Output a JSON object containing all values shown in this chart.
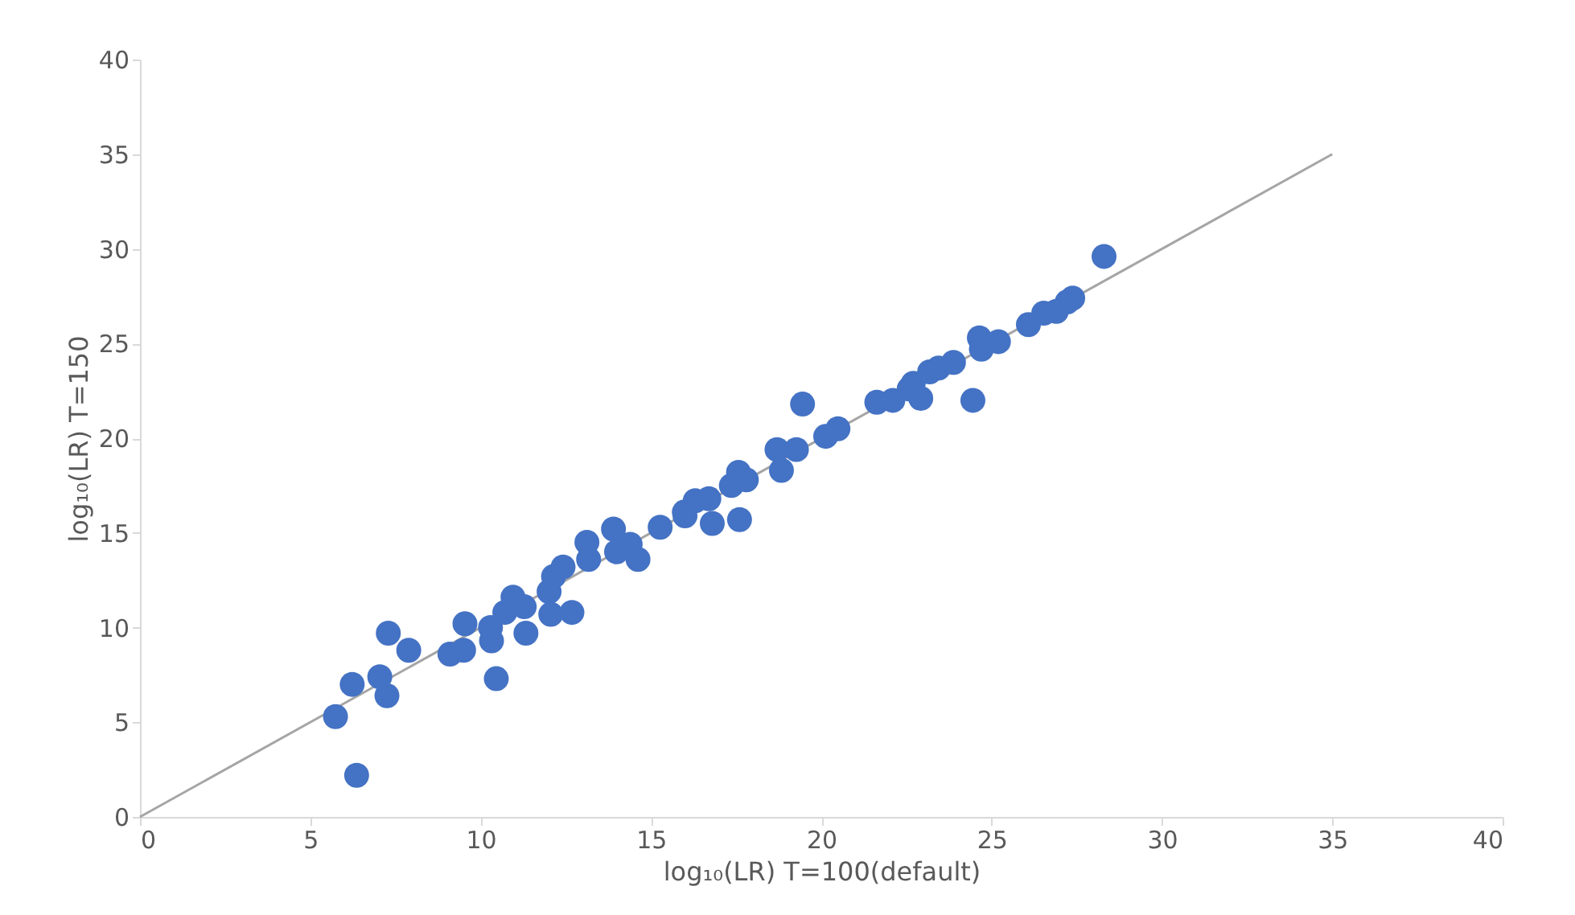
{
  "chart_data": {
    "type": "scatter",
    "xlabel": "log₁₀(LR) T=100(default)",
    "ylabel": "log₁₀(LR) T=150",
    "xlim": [
      0,
      40
    ],
    "xticks": [
      0,
      5,
      10,
      15,
      20,
      25,
      30,
      35,
      40
    ],
    "ylim": [
      0,
      40
    ],
    "yticks": [
      0,
      5,
      10,
      15,
      20,
      25,
      30,
      35,
      40
    ],
    "grid": false,
    "series": [
      {
        "color": "#4472c4",
        "marker": "circle",
        "x": [
          5.74,
          6.36,
          6.23,
          7.04,
          7.25,
          7.29,
          7.89,
          9.1,
          9.5,
          9.54,
          10.29,
          10.32,
          10.46,
          10.71,
          10.95,
          11.28,
          11.33,
          12.01,
          12.06,
          12.68,
          12.14,
          12.42,
          13.12,
          13.17,
          13.9,
          13.99,
          14.39,
          14.62,
          15.27,
          15.98,
          16.3,
          16.0,
          16.7,
          16.8,
          17.36,
          17.57,
          17.8,
          17.6,
          18.7,
          18.83,
          19.27,
          19.45,
          20.13,
          20.49,
          21.63,
          22.1,
          22.58,
          22.92,
          22.7,
          23.18,
          23.44,
          23.88,
          24.45,
          24.64,
          24.7,
          25.2,
          26.08,
          26.53,
          26.9,
          27.22,
          27.38,
          28.3
        ],
        "values": [
          5.3,
          2.2,
          7.0,
          7.4,
          6.4,
          9.7,
          8.8,
          8.6,
          8.8,
          10.2,
          10.0,
          9.3,
          7.3,
          10.8,
          11.6,
          11.1,
          9.7,
          11.9,
          10.7,
          10.8,
          12.7,
          13.2,
          14.5,
          13.6,
          15.2,
          14.0,
          14.4,
          13.6,
          15.3,
          16.1,
          16.7,
          15.9,
          16.8,
          15.5,
          17.5,
          18.2,
          17.8,
          15.7,
          19.4,
          18.3,
          19.4,
          21.8,
          20.1,
          20.5,
          21.9,
          22.0,
          22.6,
          22.1,
          22.9,
          23.5,
          23.7,
          24.0,
          22.0,
          25.3,
          24.7,
          25.1,
          26.0,
          26.6,
          26.7,
          27.2,
          27.4,
          29.6
        ]
      },
      {
        "type": "line",
        "color": "#a5a5a5",
        "line_style": "solid",
        "marker": "none",
        "x": [
          0,
          35
        ],
        "values": [
          0,
          35
        ]
      }
    ]
  }
}
